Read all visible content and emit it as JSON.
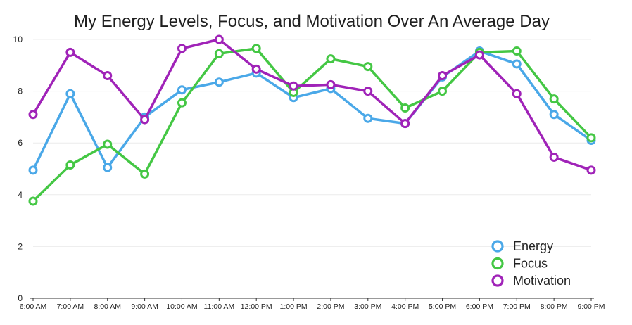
{
  "chart_data": {
    "type": "line",
    "title": "My Energy Levels, Focus, and Motivation Over An Average Day",
    "xlabel": "",
    "ylabel": "",
    "ylim": [
      0,
      10
    ],
    "yticks": [
      "0",
      "2",
      "4",
      "6",
      "8",
      "10"
    ],
    "grid": true,
    "legend_position": "bottom-right",
    "categories": [
      "6:00 AM",
      "7:00 AM",
      "8:00 AM",
      "9:00 AM",
      "10:00 AM",
      "11:00 AM",
      "12:00 PM",
      "1:00 PM",
      "2:00 PM",
      "3:00 PM",
      "4:00 PM",
      "5:00 PM",
      "6:00 PM",
      "7:00 PM",
      "8:00 PM",
      "9:00 PM"
    ],
    "series": [
      {
        "name": "Energy",
        "color": "#4aa8e8",
        "values": [
          4.95,
          7.9,
          5.05,
          7.0,
          8.05,
          8.35,
          8.7,
          7.75,
          8.1,
          6.95,
          6.75,
          8.55,
          9.55,
          9.05,
          7.1,
          6.1
        ]
      },
      {
        "name": "Focus",
        "color": "#44c744",
        "values": [
          3.75,
          5.15,
          5.95,
          4.8,
          7.55,
          9.45,
          9.65,
          7.95,
          9.25,
          8.95,
          7.35,
          8.0,
          9.5,
          9.55,
          7.7,
          6.2
        ]
      },
      {
        "name": "Motivation",
        "color": "#a023b8",
        "values": [
          7.1,
          9.5,
          8.6,
          6.9,
          9.65,
          10.0,
          8.85,
          8.2,
          8.25,
          8.0,
          6.75,
          8.6,
          9.4,
          7.9,
          5.45,
          4.95
        ]
      }
    ]
  }
}
